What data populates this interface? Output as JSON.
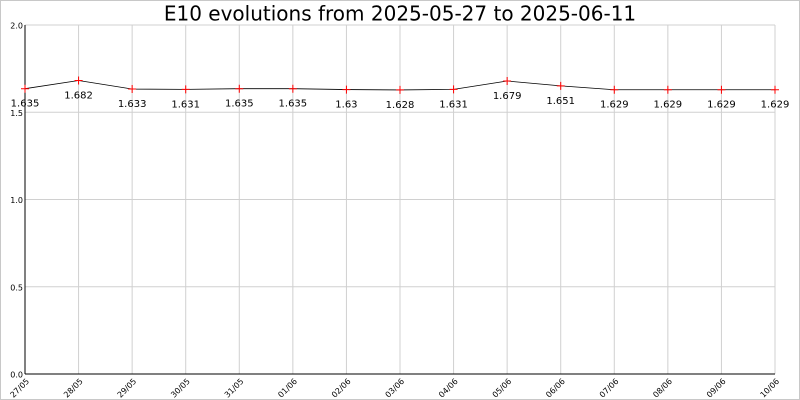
{
  "chart_data": {
    "type": "line",
    "title": "E10 evolutions from 2025-05-27 to 2025-06-11",
    "categories": [
      "27/05",
      "28/05",
      "29/05",
      "30/05",
      "31/05",
      "01/06",
      "02/06",
      "03/06",
      "04/06",
      "05/06",
      "06/06",
      "07/06",
      "08/06",
      "09/06",
      "10/06"
    ],
    "values": [
      1.635,
      1.682,
      1.633,
      1.631,
      1.635,
      1.635,
      1.63,
      1.628,
      1.631,
      1.679,
      1.651,
      1.629,
      1.629,
      1.629,
      1.629
    ],
    "color": "#000000",
    "marker_color": "#ff0000",
    "ylim": [
      0,
      2
    ],
    "yticks": [
      {
        "value": 0,
        "label": "0.0"
      },
      {
        "value": 0.5,
        "label": "0.5"
      },
      {
        "value": 1,
        "label": "1.0"
      },
      {
        "value": 1.5,
        "label": "1.5"
      },
      {
        "value": 2,
        "label": "2.0"
      }
    ],
    "grid": true
  }
}
